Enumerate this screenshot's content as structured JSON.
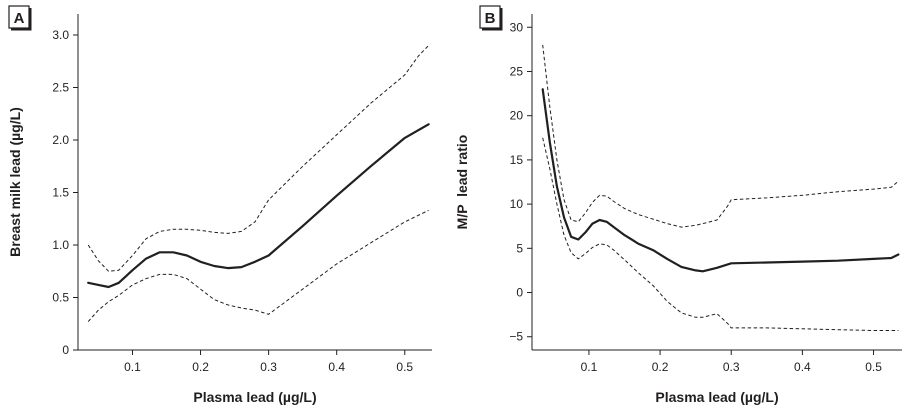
{
  "chart_data": [
    {
      "type": "line",
      "panel_label": "A",
      "xlabel": "Plasma lead (µg/L)",
      "ylabel": "Breast milk lead (µg/L)",
      "xlim": [
        0.02,
        0.54
      ],
      "ylim": [
        0,
        3.2
      ],
      "x_ticks": [
        0.1,
        0.2,
        0.3,
        0.4,
        0.5
      ],
      "x_tick_labels": [
        "0.1",
        "0.2",
        "0.3",
        "0.4",
        "0.5"
      ],
      "y_ticks": [
        0,
        0.5,
        1.0,
        1.5,
        2.0,
        2.5,
        3.0
      ],
      "y_tick_labels": [
        "0",
        "0.5",
        "1.0",
        "1.5",
        "2.0",
        "2.5",
        "3.0"
      ],
      "series": [
        {
          "style": "solid",
          "x": [
            0.035,
            0.05,
            0.065,
            0.08,
            0.1,
            0.12,
            0.14,
            0.16,
            0.18,
            0.2,
            0.22,
            0.24,
            0.26,
            0.28,
            0.3,
            0.35,
            0.4,
            0.45,
            0.5,
            0.535
          ],
          "y": [
            0.64,
            0.62,
            0.6,
            0.64,
            0.76,
            0.87,
            0.93,
            0.93,
            0.9,
            0.84,
            0.8,
            0.78,
            0.79,
            0.84,
            0.9,
            1.18,
            1.47,
            1.75,
            2.02,
            2.15
          ]
        },
        {
          "style": "dashed",
          "x": [
            0.035,
            0.05,
            0.065,
            0.08,
            0.1,
            0.12,
            0.14,
            0.16,
            0.18,
            0.2,
            0.22,
            0.24,
            0.26,
            0.28,
            0.3,
            0.35,
            0.4,
            0.45,
            0.5,
            0.52,
            0.535
          ],
          "y": [
            1.0,
            0.85,
            0.75,
            0.76,
            0.9,
            1.06,
            1.13,
            1.15,
            1.15,
            1.14,
            1.12,
            1.11,
            1.13,
            1.22,
            1.43,
            1.75,
            2.05,
            2.35,
            2.62,
            2.8,
            2.9
          ]
        },
        {
          "style": "dashed",
          "x": [
            0.035,
            0.05,
            0.065,
            0.08,
            0.1,
            0.12,
            0.14,
            0.16,
            0.18,
            0.2,
            0.22,
            0.24,
            0.26,
            0.28,
            0.3,
            0.35,
            0.4,
            0.45,
            0.5,
            0.535
          ],
          "y": [
            0.27,
            0.38,
            0.46,
            0.52,
            0.62,
            0.68,
            0.72,
            0.72,
            0.68,
            0.58,
            0.48,
            0.43,
            0.4,
            0.38,
            0.34,
            0.58,
            0.82,
            1.02,
            1.22,
            1.33
          ]
        }
      ]
    },
    {
      "type": "line",
      "panel_label": "B",
      "xlabel": "Plasma lead (µg/L)",
      "ylabel": "M/P  lead ratio",
      "xlim": [
        0.02,
        0.54
      ],
      "ylim": [
        -6.5,
        31.5
      ],
      "x_ticks": [
        0.1,
        0.2,
        0.3,
        0.4,
        0.5
      ],
      "x_tick_labels": [
        "0.1",
        "0.2",
        "0.3",
        "0.4",
        "0.5"
      ],
      "y_ticks": [
        -5,
        0,
        5,
        10,
        15,
        20,
        25,
        30
      ],
      "y_tick_labels": [
        "−5",
        "0",
        "5",
        "10",
        "15",
        "20",
        "25",
        "30"
      ],
      "series": [
        {
          "style": "solid",
          "x": [
            0.035,
            0.045,
            0.055,
            0.065,
            0.075,
            0.085,
            0.095,
            0.105,
            0.115,
            0.125,
            0.135,
            0.15,
            0.17,
            0.19,
            0.21,
            0.23,
            0.25,
            0.26,
            0.28,
            0.3,
            0.35,
            0.4,
            0.45,
            0.5,
            0.525,
            0.535
          ],
          "y": [
            23,
            17,
            12,
            8.5,
            6.3,
            6.0,
            6.8,
            7.8,
            8.2,
            8.0,
            7.4,
            6.5,
            5.5,
            4.8,
            3.8,
            2.9,
            2.5,
            2.4,
            2.8,
            3.3,
            3.4,
            3.5,
            3.6,
            3.8,
            3.9,
            4.3
          ]
        },
        {
          "style": "dashed",
          "x": [
            0.035,
            0.045,
            0.055,
            0.065,
            0.075,
            0.085,
            0.095,
            0.105,
            0.115,
            0.125,
            0.135,
            0.15,
            0.17,
            0.19,
            0.21,
            0.23,
            0.25,
            0.26,
            0.28,
            0.295,
            0.3,
            0.35,
            0.4,
            0.45,
            0.5,
            0.525,
            0.535
          ],
          "y": [
            28,
            21,
            15,
            10.5,
            8.2,
            8.0,
            9.0,
            10.2,
            11.0,
            10.9,
            10.3,
            9.5,
            8.8,
            8.3,
            7.8,
            7.4,
            7.6,
            7.8,
            8.2,
            9.8,
            10.5,
            10.7,
            11.0,
            11.4,
            11.7,
            11.9,
            12.6
          ]
        },
        {
          "style": "dashed",
          "x": [
            0.035,
            0.045,
            0.055,
            0.065,
            0.075,
            0.085,
            0.095,
            0.105,
            0.115,
            0.125,
            0.135,
            0.15,
            0.17,
            0.19,
            0.21,
            0.23,
            0.25,
            0.26,
            0.28,
            0.295,
            0.3,
            0.35,
            0.4,
            0.45,
            0.5,
            0.535
          ],
          "y": [
            17.5,
            14.0,
            10.0,
            6.5,
            4.5,
            3.8,
            4.4,
            5.1,
            5.5,
            5.4,
            4.8,
            3.7,
            2.2,
            0.8,
            -1.0,
            -2.3,
            -2.8,
            -2.8,
            -2.4,
            -3.5,
            -4.0,
            -4.0,
            -4.1,
            -4.2,
            -4.3,
            -4.3
          ]
        }
      ]
    }
  ]
}
